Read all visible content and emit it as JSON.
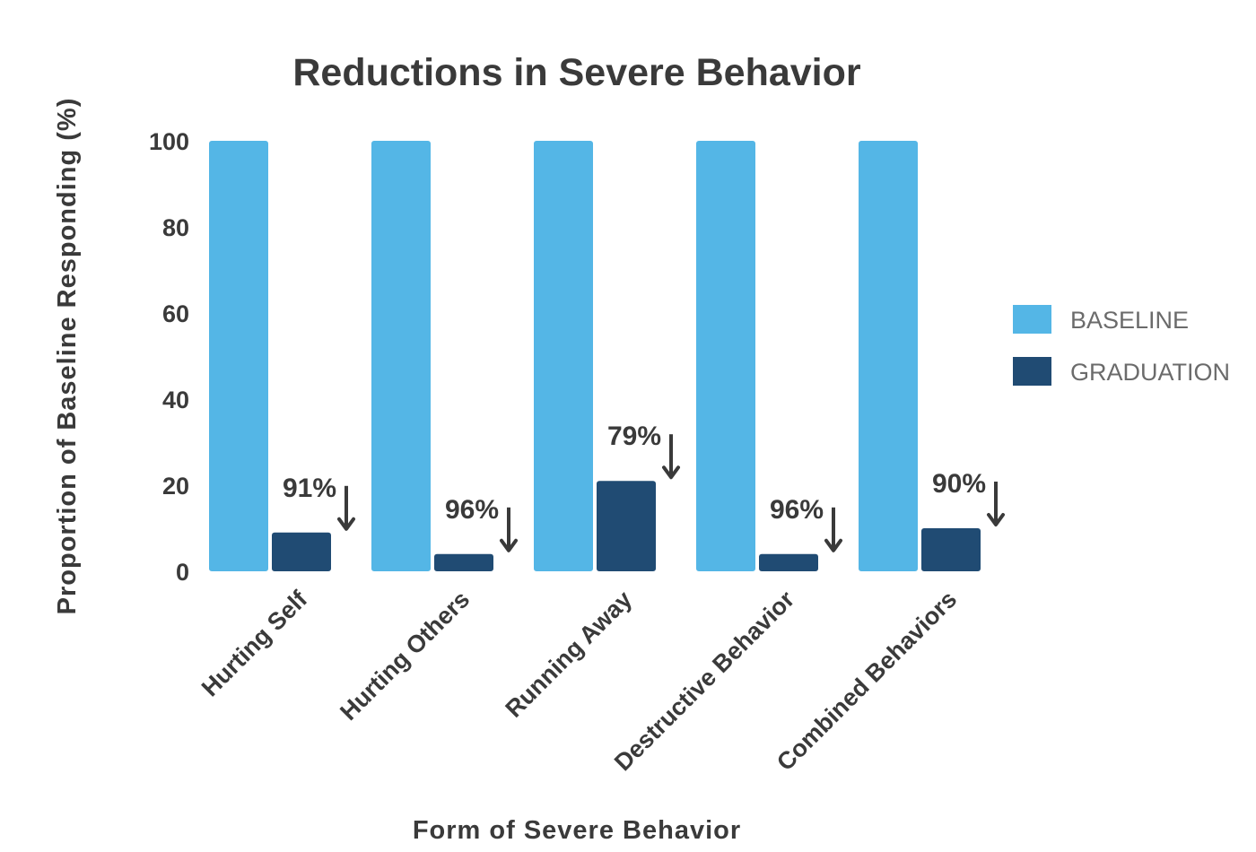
{
  "chart_data": {
    "type": "bar",
    "title": "Reductions in Severe Behavior",
    "xlabel": "Form of Severe Behavior",
    "ylabel": "Proportion of Baseline Responding (%)",
    "ylim": [
      0,
      100
    ],
    "yticks": [
      0,
      20,
      40,
      60,
      80,
      100
    ],
    "categories": [
      "Hurting Self",
      "Hurting Others",
      "Running Away",
      "Destructive Behavior",
      "Combined Behaviors"
    ],
    "series": [
      {
        "name": "BASELINE",
        "color": "#54b6e6",
        "values": [
          100,
          100,
          100,
          100,
          100
        ]
      },
      {
        "name": "GRADUATION",
        "color": "#204b73",
        "values": [
          9,
          4,
          21,
          4,
          10
        ]
      }
    ],
    "annotations": [
      "91%",
      "96%",
      "79%",
      "96%",
      "90%"
    ],
    "annotation_icon": "down-arrow-icon",
    "legend_position": "right",
    "grid": false
  }
}
